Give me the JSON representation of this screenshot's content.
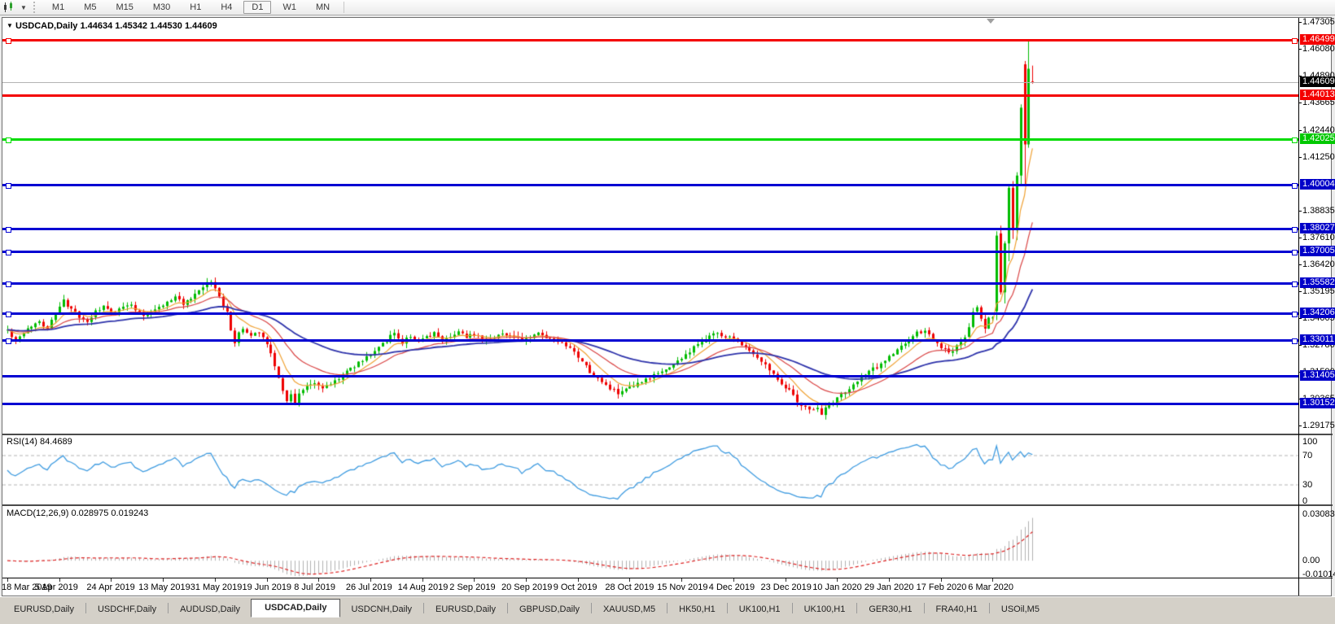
{
  "toolbar": {
    "timeframes": [
      "M1",
      "M5",
      "M15",
      "M30",
      "H1",
      "H4",
      "D1",
      "W1",
      "MN"
    ],
    "active": "D1",
    "chart_type_icon": "candlestick-chart-icon"
  },
  "title": {
    "caret": "▼",
    "symbol": "USDCAD,Daily",
    "open": "1.44634",
    "high": "1.45342",
    "low": "1.44530",
    "close": "1.44609"
  },
  "price_axis": {
    "ticks": [
      "1.47305",
      "1.46080",
      "1.44890",
      "1.43665",
      "1.42440",
      "1.41250",
      "1.38835",
      "1.37610",
      "1.36420",
      "1.35195",
      "1.34005",
      "1.32780",
      "1.31590",
      "1.30365",
      "1.29175"
    ],
    "badges": [
      {
        "value": "1.46499",
        "color": "#f40000"
      },
      {
        "value": "1.44609",
        "color": "#000000"
      },
      {
        "value": "1.44013",
        "color": "#f40000"
      },
      {
        "value": "1.42025",
        "color": "#00c800"
      },
      {
        "value": "1.40004",
        "color": "#0000c8"
      },
      {
        "value": "1.38027",
        "color": "#0000c8"
      },
      {
        "value": "1.37005",
        "color": "#0000c8"
      },
      {
        "value": "1.35582",
        "color": "#0000c8"
      },
      {
        "value": "1.34206",
        "color": "#0000c8"
      },
      {
        "value": "1.33011",
        "color": "#0000c8"
      },
      {
        "value": "1.31405",
        "color": "#0000c8"
      },
      {
        "value": "1.30152",
        "color": "#0000c8"
      }
    ]
  },
  "rsi": {
    "label": "RSI(14)",
    "value": "84.4689",
    "ticks": [
      "100",
      "70",
      "30",
      "0"
    ],
    "line_color": "#3e9be0"
  },
  "macd": {
    "label": "MACD(12,26,9)",
    "values": "0.028975 0.019243",
    "ticks": [
      "0.030838",
      "0.00",
      "-0.010144"
    ],
    "hist_color": "#b0b0b0",
    "signal_color": "#dd2222"
  },
  "date_axis": [
    "18 Mar 2019",
    "5 Apr 2019",
    "24 Apr 2019",
    "13 May 2019",
    "31 May 2019",
    "19 Jun 2019",
    "8 Jul 2019",
    "26 Jul 2019",
    "14 Aug 2019",
    "2 Sep 2019",
    "20 Sep 2019",
    "9 Oct 2019",
    "28 Oct 2019",
    "15 Nov 2019",
    "4 Dec 2019",
    "23 Dec 2019",
    "10 Jan 2020",
    "29 Jan 2020",
    "17 Feb 2020",
    "6 Mar 2020"
  ],
  "tabs": [
    {
      "label": "EURUSD,Daily",
      "active": false
    },
    {
      "label": "USDCHF,Daily",
      "active": false
    },
    {
      "label": "AUDUSD,Daily",
      "active": false
    },
    {
      "label": "USDCAD,Daily",
      "active": true
    },
    {
      "label": "USDCNH,Daily",
      "active": false
    },
    {
      "label": "EURUSD,Daily",
      "active": false
    },
    {
      "label": "GBPUSD,Daily",
      "active": false
    },
    {
      "label": "XAUUSD,M5",
      "active": false
    },
    {
      "label": "HK50,H1",
      "active": false
    },
    {
      "label": "UK100,H1",
      "active": false
    },
    {
      "label": "UK100,H1",
      "active": false
    },
    {
      "label": "GER30,H1",
      "active": false
    },
    {
      "label": "FRA40,H1",
      "active": false
    },
    {
      "label": "USOil,M5",
      "active": false
    }
  ],
  "chart_data": {
    "type": "candlestick",
    "symbol": "USDCAD",
    "timeframe": "Daily",
    "bars": 258,
    "visible_price_range": [
      1.288,
      1.4749
    ],
    "current_price": 1.44609,
    "last_bar": {
      "open": 1.44634,
      "high": 1.45342,
      "low": 1.4453,
      "close": 1.44609
    },
    "bull_color": "#00bb00",
    "bear_color": "#ee0000",
    "hlines": [
      {
        "price": 1.46499,
        "color": "#f40000",
        "handles": true
      },
      {
        "price": 1.44013,
        "color": "#f40000",
        "handles": false
      },
      {
        "price": 1.42025,
        "color": "#00dc00",
        "handles": true
      },
      {
        "price": 1.40004,
        "color": "#0000d2",
        "handles": true
      },
      {
        "price": 1.38027,
        "color": "#0000d2",
        "handles": true
      },
      {
        "price": 1.37005,
        "color": "#0000d2",
        "handles": true
      },
      {
        "price": 1.35582,
        "color": "#0000d2",
        "handles": true
      },
      {
        "price": 1.34206,
        "color": "#0000d2",
        "handles": true
      },
      {
        "price": 1.33011,
        "color": "#0000d2",
        "handles": true
      },
      {
        "price": 1.31405,
        "color": "#0000d2",
        "handles": false
      },
      {
        "price": 1.30152,
        "color": "#0000d2",
        "handles": false
      }
    ],
    "moving_averages": [
      {
        "period": 8,
        "color": "#efa133",
        "width": 1.2
      },
      {
        "period": 20,
        "color": "#d94444",
        "width": 1.2
      },
      {
        "period": 50,
        "color": "#2d32aa",
        "width": 1.8
      }
    ],
    "anchors": [
      [
        0,
        1.3345
      ],
      [
        2,
        1.3295
      ],
      [
        4,
        1.333
      ],
      [
        6,
        1.3365
      ],
      [
        8,
        1.3385
      ],
      [
        10,
        1.3355
      ],
      [
        12,
        1.342
      ],
      [
        14,
        1.3475
      ],
      [
        16,
        1.344
      ],
      [
        18,
        1.34
      ],
      [
        20,
        1.3385
      ],
      [
        22,
        1.3425
      ],
      [
        24,
        1.345
      ],
      [
        26,
        1.342
      ],
      [
        28,
        1.344
      ],
      [
        30,
        1.3465
      ],
      [
        32,
        1.344
      ],
      [
        34,
        1.3415
      ],
      [
        36,
        1.343
      ],
      [
        38,
        1.345
      ],
      [
        40,
        1.347
      ],
      [
        42,
        1.3495
      ],
      [
        44,
        1.3465
      ],
      [
        46,
        1.348
      ],
      [
        48,
        1.352
      ],
      [
        50,
        1.3555
      ],
      [
        51,
        1.356
      ],
      [
        53,
        1.35
      ],
      [
        55,
        1.342
      ],
      [
        56,
        1.335
      ],
      [
        57,
        1.329
      ],
      [
        58,
        1.333
      ],
      [
        59,
        1.335
      ],
      [
        61,
        1.332
      ],
      [
        63,
        1.334
      ],
      [
        65,
        1.329
      ],
      [
        66,
        1.324
      ],
      [
        67,
        1.318
      ],
      [
        68,
        1.313
      ],
      [
        69,
        1.308
      ],
      [
        70,
        1.3025
      ],
      [
        71,
        1.306
      ],
      [
        72,
        1.302
      ],
      [
        73,
        1.306
      ],
      [
        75,
        1.309
      ],
      [
        77,
        1.311
      ],
      [
        79,
        1.3085
      ],
      [
        81,
        1.3105
      ],
      [
        83,
        1.313
      ],
      [
        85,
        1.316
      ],
      [
        87,
        1.3185
      ],
      [
        89,
        1.321
      ],
      [
        91,
        1.324
      ],
      [
        93,
        1.327
      ],
      [
        95,
        1.33
      ],
      [
        97,
        1.333
      ],
      [
        99,
        1.329
      ],
      [
        101,
        1.332
      ],
      [
        103,
        1.329
      ],
      [
        105,
        1.331
      ],
      [
        107,
        1.333
      ],
      [
        109,
        1.33
      ],
      [
        111,
        1.332
      ],
      [
        113,
        1.334
      ],
      [
        115,
        1.331
      ],
      [
        117,
        1.333
      ],
      [
        119,
        1.331
      ],
      [
        121,
        1.331
      ],
      [
        123,
        1.3325
      ],
      [
        125,
        1.333
      ],
      [
        127,
        1.331
      ],
      [
        129,
        1.33
      ],
      [
        131,
        1.3315
      ],
      [
        133,
        1.333
      ],
      [
        135,
        1.331
      ],
      [
        137,
        1.33
      ],
      [
        139,
        1.328
      ],
      [
        141,
        1.326
      ],
      [
        143,
        1.322
      ],
      [
        145,
        1.318
      ],
      [
        147,
        1.314
      ],
      [
        149,
        1.311
      ],
      [
        151,
        1.3085
      ],
      [
        153,
        1.306
      ],
      [
        155,
        1.3075
      ],
      [
        157,
        1.309
      ],
      [
        159,
        1.311
      ],
      [
        161,
        1.313
      ],
      [
        163,
        1.315
      ],
      [
        165,
        1.317
      ],
      [
        167,
        1.319
      ],
      [
        169,
        1.322
      ],
      [
        171,
        1.325
      ],
      [
        173,
        1.328
      ],
      [
        175,
        1.331
      ],
      [
        177,
        1.333
      ],
      [
        179,
        1.332
      ],
      [
        181,
        1.331
      ],
      [
        183,
        1.33
      ],
      [
        185,
        1.327
      ],
      [
        187,
        1.324
      ],
      [
        189,
        1.321
      ],
      [
        191,
        1.317
      ],
      [
        193,
        1.313
      ],
      [
        195,
        1.309
      ],
      [
        197,
        1.305
      ],
      [
        199,
        1.301
      ],
      [
        201,
        1.2985
      ],
      [
        203,
        1.3
      ],
      [
        204,
        1.297
      ],
      [
        205,
        1.299
      ],
      [
        206,
        1.301
      ],
      [
        208,
        1.304
      ],
      [
        210,
        1.307
      ],
      [
        212,
        1.31
      ],
      [
        214,
        1.313
      ],
      [
        216,
        1.316
      ],
      [
        218,
        1.318
      ],
      [
        220,
        1.321
      ],
      [
        222,
        1.324
      ],
      [
        224,
        1.327
      ],
      [
        226,
        1.33
      ],
      [
        228,
        1.333
      ],
      [
        230,
        1.334
      ],
      [
        232,
        1.33
      ],
      [
        234,
        1.327
      ],
      [
        236,
        1.324
      ],
      [
        238,
        1.327
      ],
      [
        240,
        1.331
      ],
      [
        241,
        1.336
      ],
      [
        242,
        1.342
      ],
      [
        243,
        1.3455
      ],
      [
        244,
        1.339
      ],
      [
        245,
        1.336
      ],
      [
        246,
        1.34
      ],
      [
        247,
        1.3395
      ]
    ],
    "tail_bars_start": 248,
    "tail_bars": [
      [
        1.343,
        1.379,
        1.339,
        1.377
      ],
      [
        1.378,
        1.3815,
        1.3505,
        1.3515
      ],
      [
        1.3515,
        1.3745,
        1.3465,
        1.3735
      ],
      [
        1.3735,
        1.4,
        1.3655,
        1.3985
      ],
      [
        1.3985,
        1.4015,
        1.3755,
        1.3795
      ],
      [
        1.3795,
        1.4055,
        1.375,
        1.404
      ],
      [
        1.404,
        1.436,
        1.3995,
        1.4345
      ],
      [
        1.454,
        1.4555,
        1.4,
        1.418
      ],
      [
        1.418,
        1.465,
        1.4165,
        1.452
      ],
      [
        1.44634,
        1.45342,
        1.4453,
        1.44609
      ]
    ],
    "indicators": {
      "rsi": {
        "period": 14,
        "last": 84.4689,
        "range": [
          0,
          100
        ],
        "levels": [
          70,
          30
        ]
      },
      "macd": {
        "fast": 12,
        "slow": 26,
        "signal": 9,
        "last_main": 0.028975,
        "last_signal": 0.019243,
        "range": [
          -0.010144,
          0.030838
        ]
      }
    }
  }
}
